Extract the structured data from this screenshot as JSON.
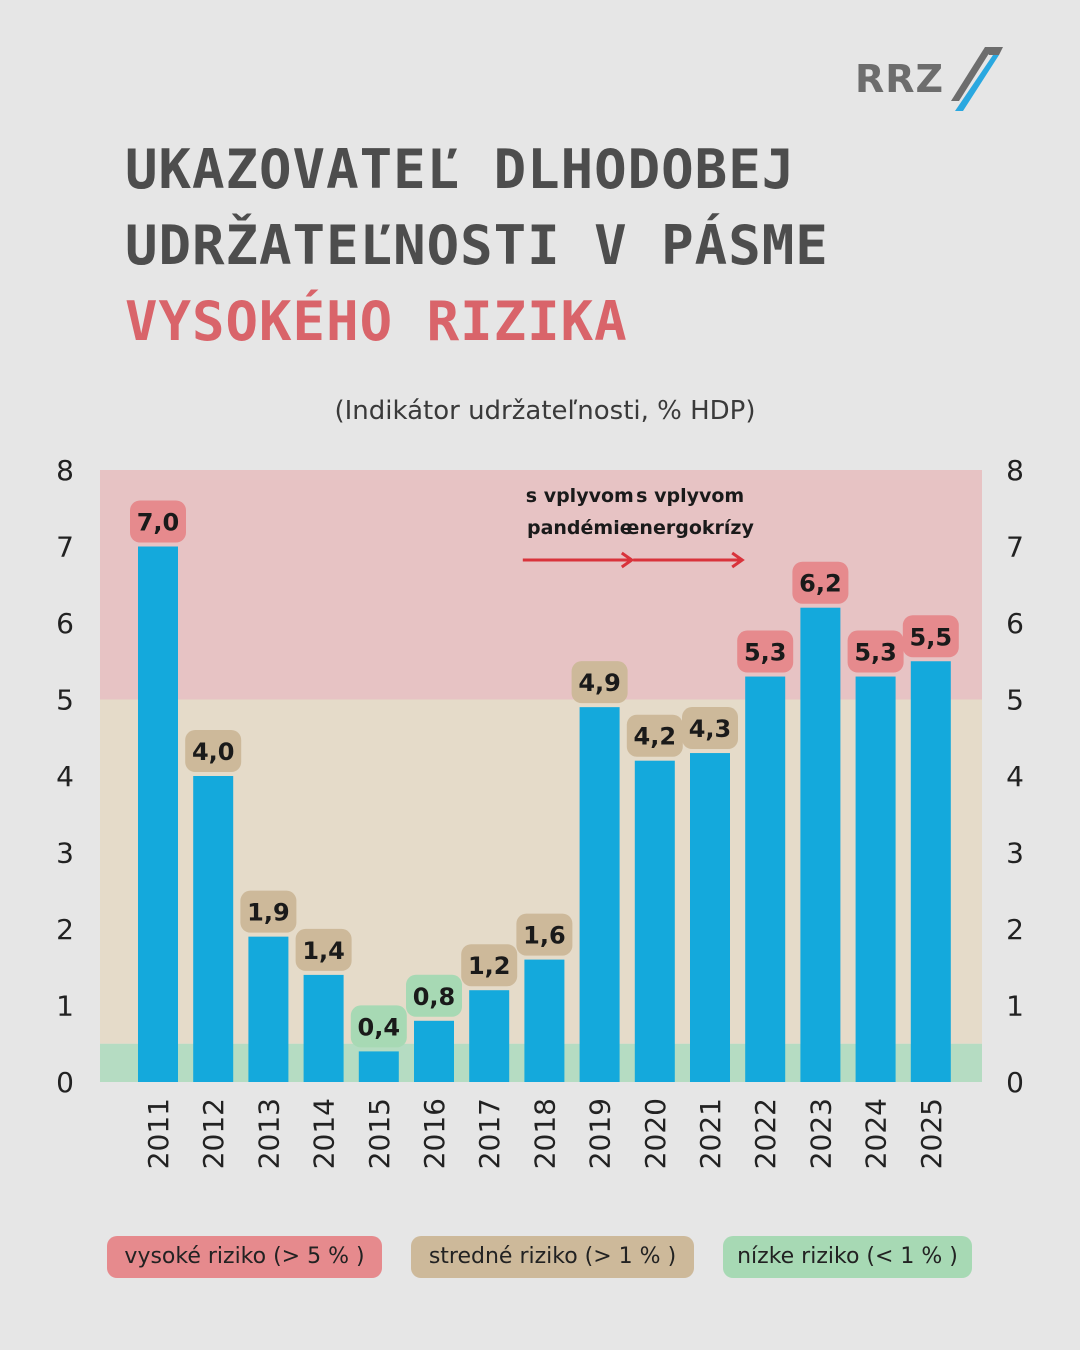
{
  "logo": {
    "text": "RRZ",
    "mark": "slash-stripes-icon"
  },
  "title": {
    "line1": "UKAZOVATEĽ DLHODOBEJ",
    "line2": "UDRŽATEĽNOSTI V PÁSME",
    "line3": "VYSOKÉHO RIZIKA"
  },
  "chart_data": {
    "type": "bar",
    "title": "UKAZOVATEĽ DLHODOBEJ UDRŽATEĽNOSTI V PÁSME VYSOKÉHO RIZIKA",
    "subtitle": "(Indikátor udržateľnosti, % HDP)",
    "categories": [
      "2011",
      "2012",
      "2013",
      "2014",
      "2015",
      "2016",
      "2017",
      "2018",
      "2019",
      "2020",
      "2021",
      "2022",
      "2023",
      "2024",
      "2025"
    ],
    "values": [
      7.0,
      4.0,
      1.9,
      1.4,
      0.4,
      0.8,
      1.2,
      1.6,
      4.9,
      4.2,
      4.3,
      5.3,
      6.2,
      5.3,
      5.5
    ],
    "labels": [
      "7,0",
      "4,0",
      "1,9",
      "1,4",
      "0,4",
      "0,8",
      "1,2",
      "1,6",
      "4,9",
      "4,2",
      "4,3",
      "5,3",
      "6,2",
      "5,3",
      "5,5"
    ],
    "ylim": [
      0,
      8
    ],
    "yticks": [
      "0",
      "1",
      "2",
      "3",
      "4",
      "5",
      "6",
      "7",
      "8"
    ],
    "axis_both_sides": true,
    "bands": [
      {
        "name": "vysoké riziko (> 5 %)",
        "from": 5,
        "to": 8,
        "color": "#e7c3c4"
      },
      {
        "name": "stredné riziko (> 1 %)",
        "from": 0.5,
        "to": 5,
        "color": "#e5dbc9"
      },
      {
        "name": "nízke riziko (< 1 %)",
        "from": 0,
        "to": 0.5,
        "color": "#b5dcc2"
      }
    ],
    "bar_color": "#14a9dc",
    "label_colors": {
      "high": "#e68a8d",
      "mid": "#cdb99a",
      "low": "#a7d9b4"
    },
    "annotations": [
      {
        "text_line1": "s vplyvom",
        "text_line2": "pandémie",
        "category": "2020"
      },
      {
        "text_line1": "s vplyvom",
        "text_line2": "energokrízy",
        "category": "2022"
      }
    ],
    "annotation_color": "#d9333b",
    "legend": [
      {
        "label": "vysoké riziko (> 5 % )",
        "color": "#e68a8d"
      },
      {
        "label": "stredné riziko (> 1 % )",
        "color": "#cdb99a"
      },
      {
        "label": "nízke riziko (< 1 % )",
        "color": "#a7d9b4"
      }
    ]
  }
}
